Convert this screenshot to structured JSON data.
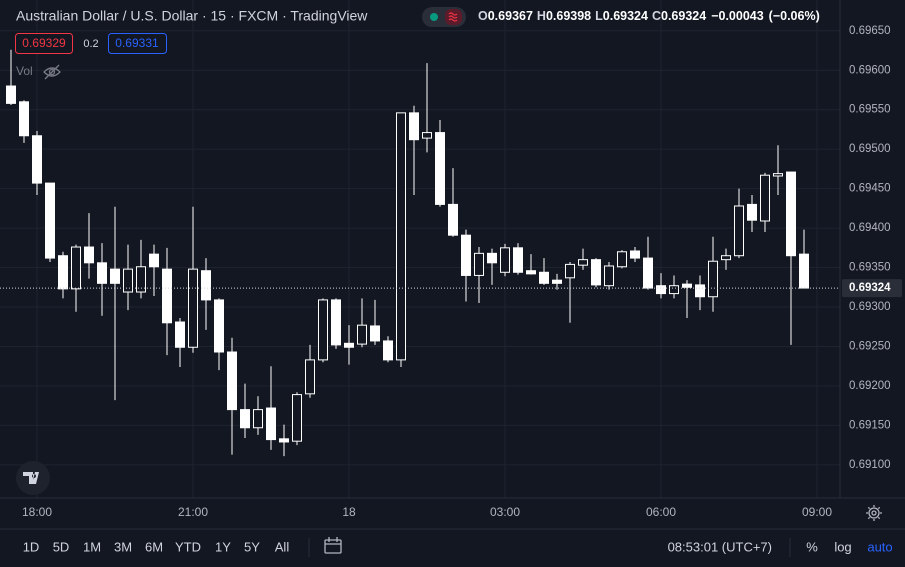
{
  "chart_data": {
    "type": "candlestick",
    "title": "Australian Dollar / U.S. Dollar · 15 · FXCM · TradingView",
    "ohlc_legend": [
      {
        "label": "O",
        "value": 0.69367
      },
      {
        "label": "H",
        "value": 0.69398
      },
      {
        "label": "L",
        "value": 0.69324
      },
      {
        "label": "C",
        "value": 0.69324
      }
    ],
    "change": {
      "value": -0.00043,
      "label": "−0.00043"
    },
    "change_percent": {
      "value": -0.06,
      "label": "(−0.06%)"
    },
    "sell_price": 0.69329,
    "spread": 0.2,
    "buy_price": 0.69331,
    "volume_label": "Vol",
    "x": [
      "17:30",
      "17:45",
      "18:00",
      "18:15",
      "18:30",
      "18:45",
      "19:00",
      "19:15",
      "19:30",
      "19:45",
      "20:00",
      "20:15",
      "20:30",
      "20:45",
      "21:00",
      "21:15",
      "21:30",
      "21:45",
      "22:00",
      "22:15",
      "22:30",
      "22:45",
      "23:00",
      "23:15",
      "23:30",
      "23:45",
      "00:00",
      "00:15",
      "00:30",
      "00:45",
      "01:00",
      "01:15",
      "01:30",
      "01:45",
      "02:00",
      "02:15",
      "02:30",
      "02:45",
      "03:00",
      "03:15",
      "03:30",
      "03:45",
      "04:00",
      "04:15",
      "04:30",
      "04:45",
      "05:00",
      "05:15",
      "05:30",
      "05:45",
      "06:00",
      "06:15",
      "06:30",
      "06:45",
      "07:00",
      "07:15",
      "07:30",
      "07:45",
      "08:00",
      "08:15",
      "08:30",
      "08:45"
    ],
    "open": [
      0.6958,
      0.6956,
      0.69517,
      0.69457,
      0.69365,
      0.69323,
      0.69376,
      0.69356,
      0.69348,
      0.69319,
      0.69319,
      0.69367,
      0.69348,
      0.69281,
      0.69249,
      0.69346,
      0.69309,
      0.69243,
      0.6917,
      0.69147,
      0.69172,
      0.69133,
      0.6913,
      0.6919,
      0.69233,
      0.69309,
      0.69254,
      0.69253,
      0.69276,
      0.69257,
      0.69233,
      0.69546,
      0.69514,
      0.69521,
      0.6943,
      0.69391,
      0.6934,
      0.69368,
      0.69344,
      0.69375,
      0.69346,
      0.69344,
      0.69334,
      0.69337,
      0.69353,
      0.6936,
      0.69327,
      0.69351,
      0.69371,
      0.69362,
      0.69327,
      0.69317,
      0.69329,
      0.69328,
      0.69313,
      0.6936,
      0.69365,
      0.6943,
      0.69409,
      0.69466,
      0.69471,
      0.69367
    ],
    "high": [
      0.69626,
      0.69562,
      0.69523,
      0.69457,
      0.6937,
      0.69379,
      0.69419,
      0.69381,
      0.69427,
      0.69379,
      0.69385,
      0.69379,
      0.69375,
      0.69286,
      0.69427,
      0.69362,
      0.69311,
      0.69261,
      0.69203,
      0.69187,
      0.69225,
      0.69151,
      0.69192,
      0.69252,
      0.69311,
      0.69311,
      0.69277,
      0.69311,
      0.69309,
      0.69263,
      0.69546,
      0.69555,
      0.69609,
      0.69537,
      0.69476,
      0.69398,
      0.69376,
      0.69374,
      0.6938,
      0.69381,
      0.69367,
      0.69362,
      0.69342,
      0.69357,
      0.69374,
      0.69362,
      0.69357,
      0.69372,
      0.69376,
      0.69389,
      0.69343,
      0.6934,
      0.69334,
      0.6934,
      0.69389,
      0.69374,
      0.6945,
      0.69442,
      0.6947,
      0.69505,
      0.69471,
      0.69398
    ],
    "low": [
      0.69556,
      0.69508,
      0.69442,
      0.69357,
      0.69311,
      0.69294,
      0.69336,
      0.69289,
      0.69182,
      0.69296,
      0.69311,
      0.69314,
      0.69239,
      0.69224,
      0.69242,
      0.69271,
      0.6922,
      0.69113,
      0.69134,
      0.69138,
      0.69119,
      0.69111,
      0.69125,
      0.69185,
      0.6923,
      0.69247,
      0.69227,
      0.69249,
      0.69252,
      0.6923,
      0.69224,
      0.69442,
      0.69496,
      0.69427,
      0.69389,
      0.69307,
      0.69305,
      0.69328,
      0.69339,
      0.69341,
      0.69341,
      0.69328,
      0.69322,
      0.6928,
      0.69347,
      0.69325,
      0.69322,
      0.69349,
      0.69357,
      0.69322,
      0.69311,
      0.69311,
      0.69286,
      0.69296,
      0.69294,
      0.69347,
      0.69362,
      0.69395,
      0.69395,
      0.69442,
      0.69252,
      0.69324
    ],
    "close": [
      0.69558,
      0.69517,
      0.69457,
      0.69362,
      0.69323,
      0.69376,
      0.69356,
      0.6933,
      0.6933,
      0.69348,
      0.69351,
      0.69351,
      0.6928,
      0.69249,
      0.69348,
      0.69309,
      0.69243,
      0.6917,
      0.69147,
      0.6917,
      0.69132,
      0.69129,
      0.69189,
      0.69233,
      0.69309,
      0.69252,
      0.69249,
      0.69277,
      0.69257,
      0.69233,
      0.69546,
      0.69512,
      0.69521,
      0.6943,
      0.69391,
      0.6934,
      0.69368,
      0.69356,
      0.69375,
      0.69344,
      0.69342,
      0.6933,
      0.6933,
      0.69354,
      0.6936,
      0.69328,
      0.69352,
      0.6937,
      0.69362,
      0.69324,
      0.69317,
      0.69327,
      0.69325,
      0.69313,
      0.69358,
      0.69365,
      0.69428,
      0.6941,
      0.69467,
      0.69469,
      0.69365,
      0.69324
    ],
    "up_color": "#131722",
    "down_color": "#ffffff",
    "wick_color": "#ffffff",
    "last_price": 0.69324,
    "ylim": [
      0.69058,
      0.69689
    ],
    "yticks": [
      {
        "value": 0.691,
        "label": "0.69100"
      },
      {
        "value": 0.6915,
        "label": "0.69150"
      },
      {
        "value": 0.692,
        "label": "0.69200"
      },
      {
        "value": 0.6925,
        "label": "0.69250"
      },
      {
        "value": 0.693,
        "label": "0.69300"
      },
      {
        "value": 0.6935,
        "label": "0.69350"
      },
      {
        "value": 0.694,
        "label": "0.69400"
      },
      {
        "value": 0.6945,
        "label": "0.69450"
      },
      {
        "value": 0.695,
        "label": "0.69500"
      },
      {
        "value": 0.6955,
        "label": "0.69550"
      },
      {
        "value": 0.696,
        "label": "0.69600"
      },
      {
        "value": 0.6965,
        "label": "0.69650"
      }
    ],
    "xticks": [
      "18:00",
      "21:00",
      "18",
      "03:00",
      "06:00",
      "09:00"
    ],
    "grid": true
  },
  "toolbar": {
    "ranges": [
      "1D",
      "5D",
      "1M",
      "3M",
      "6M",
      "YTD",
      "1Y",
      "5Y",
      "All"
    ],
    "clock": "08:53:01 (UTC+7)",
    "scale_options": [
      "%",
      "log",
      "auto"
    ]
  }
}
